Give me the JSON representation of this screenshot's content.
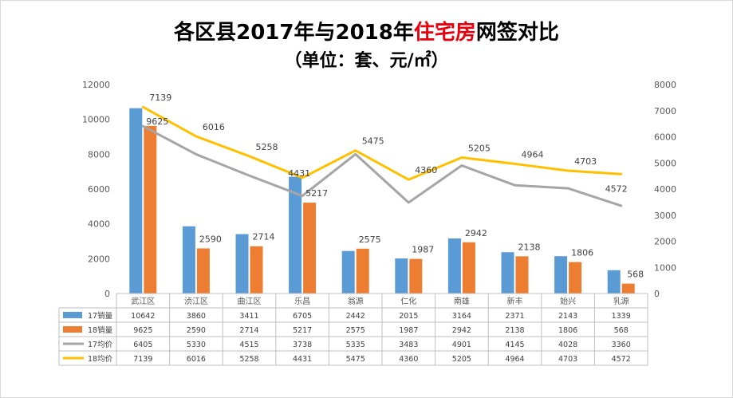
{
  "title": {
    "part1": "各区县2017年与2018年",
    "highlight": "住宅房",
    "part2": "网签对比",
    "subtitle": "（单位：套、元/㎡）"
  },
  "colors": {
    "s17_sales": "#5b9bd5",
    "s18_sales": "#ed7d31",
    "s17_price": "#a5a5a5",
    "s18_price": "#ffc000",
    "title_highlight": "#e8000d"
  },
  "chart_data": {
    "type": "bar",
    "categories": [
      "武江区",
      "浈江区",
      "曲江区",
      "乐昌",
      "翁源",
      "仁化",
      "南雄",
      "新丰",
      "始兴",
      "乳源"
    ],
    "series": [
      {
        "name": "17销量",
        "type": "bar",
        "axis": "left",
        "values": [
          10642,
          3860,
          3411,
          6705,
          2442,
          2015,
          3164,
          2371,
          2143,
          1339
        ]
      },
      {
        "name": "18销量",
        "type": "bar",
        "axis": "left",
        "values": [
          9625,
          2590,
          2714,
          5217,
          2575,
          1987,
          2942,
          2138,
          1806,
          568
        ]
      },
      {
        "name": "17均价",
        "type": "line",
        "axis": "right",
        "values": [
          6405,
          5330,
          4515,
          3738,
          5335,
          3483,
          4901,
          4145,
          4028,
          3360
        ]
      },
      {
        "name": "18均价",
        "type": "line",
        "axis": "right",
        "values": [
          7139,
          6016,
          5258,
          4431,
          5475,
          4360,
          5205,
          4964,
          4703,
          4572
        ]
      }
    ],
    "ylim": [
      0,
      12000
    ],
    "y2lim": [
      0,
      8000
    ],
    "yticks": [
      0,
      2000,
      4000,
      6000,
      8000,
      10000,
      12000
    ],
    "y2ticks": [
      0,
      1000,
      2000,
      3000,
      4000,
      5000,
      6000,
      7000,
      8000
    ],
    "data_labels": {
      "18销量": [
        9625,
        2590,
        2714,
        5217,
        2575,
        1987,
        2942,
        2138,
        1806,
        568
      ],
      "18均价": [
        7139,
        6016,
        5258,
        4431,
        5475,
        4360,
        5205,
        4964,
        4703,
        4572
      ]
    },
    "grid": false,
    "legend": "data-table-bottom"
  }
}
